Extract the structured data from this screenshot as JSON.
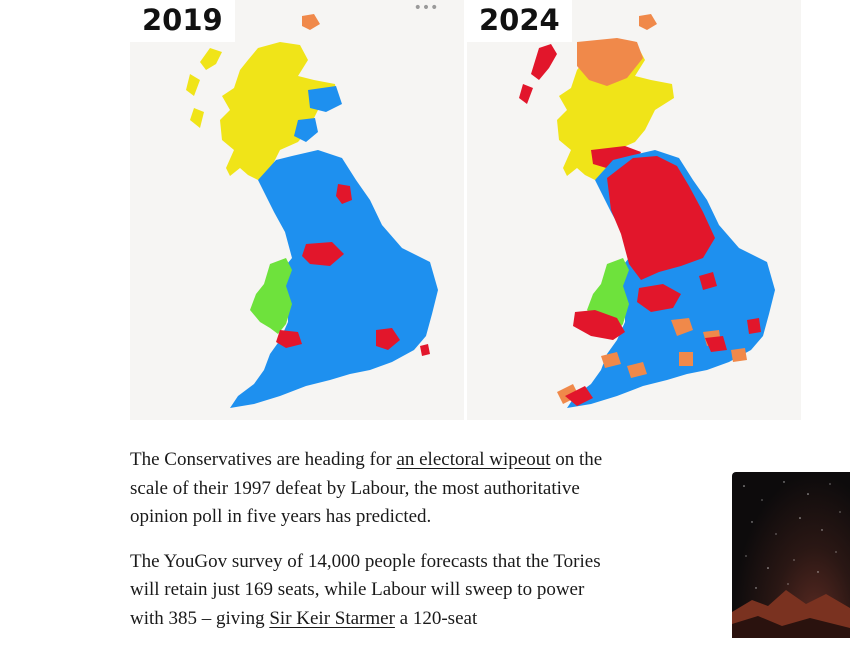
{
  "maps": [
    {
      "year": "2019",
      "region_colors": {
        "scotland_north": "#f0e418",
        "scotland_highlands_tip": "#f0894a",
        "scotland_east": "#1e90ef",
        "england": "#1e90ef",
        "wales": "#6ee23c",
        "urban": "#e2162b"
      }
    },
    {
      "year": "2024",
      "region_colors": {
        "scotland_north": "#f0894a",
        "scotland_west": "#e2162b",
        "scotland_central": "#f0e418",
        "england_north": "#e2162b",
        "england_south": "#1e90ef",
        "southwest": "#f0894a",
        "wales": "#6ee23c"
      }
    }
  ],
  "party_colors": {
    "conservative": "#1e90ef",
    "labour": "#e2162b",
    "snp": "#f0e418",
    "libdem": "#f0894a",
    "plaid": "#6ee23c"
  },
  "toolbar": {
    "more_label": "•••"
  },
  "article": {
    "p1_text1": "The Conservatives are heading for ",
    "p1_link": "an electoral wipeout",
    "p1_text2": " on the scale of their 1997 defeat by Labour, the most authoritative opinion poll in five years has predicted.",
    "p2_text1": "The YouGov survey of 14,000 people forecasts that the Tories will retain just 169 seats, while Labour will sweep to power with 385 – giving ",
    "p2_link": "Sir Keir Starmer",
    "p2_text2": " a 120-seat"
  }
}
